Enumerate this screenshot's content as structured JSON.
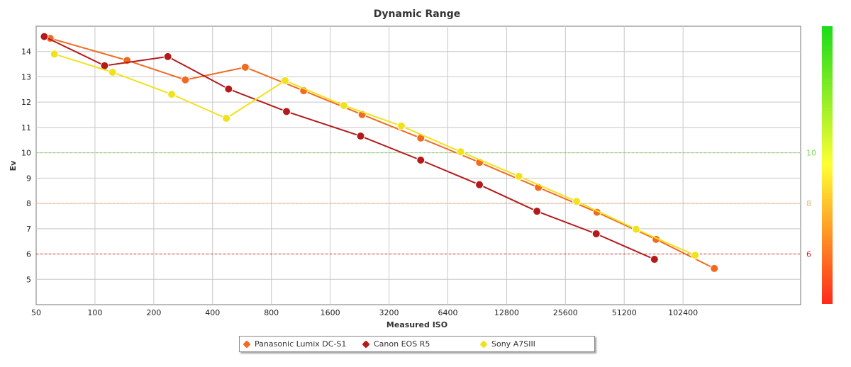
{
  "chart_data": {
    "type": "line",
    "title": "Dynamic Range",
    "xlabel": "Measured ISO",
    "ylabel": "Ev",
    "x_scale": "log2",
    "xlim": [
      50,
      409600
    ],
    "ylim": [
      4,
      15
    ],
    "x_ticks": [
      50,
      100,
      200,
      400,
      800,
      1600,
      3200,
      6400,
      12800,
      25600,
      51200,
      102400
    ],
    "y_ticks": [
      5,
      6,
      7,
      8,
      9,
      10,
      11,
      12,
      13,
      14
    ],
    "grid": true,
    "legend_position": "bottom",
    "reference_lines": [
      {
        "y": 10,
        "label": "10",
        "color": "#7ed957"
      },
      {
        "y": 8,
        "label": "8",
        "color": "#f5b26b"
      },
      {
        "y": 6,
        "label": "6",
        "color": "#d62020"
      }
    ],
    "colorbar": {
      "top_color": "#1adc1a",
      "mid_color": "#ffff33",
      "bottom_color": "#ff2a1a"
    },
    "series": [
      {
        "name": "Panasonic Lumix DC-S1",
        "color": "#f26a21",
        "x": [
          59,
          146,
          290,
          588,
          1170,
          2330,
          4650,
          9300,
          18600,
          37100,
          74500,
          148000
        ],
        "y": [
          14.52,
          13.65,
          12.88,
          13.38,
          12.45,
          11.51,
          10.58,
          9.62,
          8.63,
          7.65,
          6.58,
          5.43
        ]
      },
      {
        "name": "Canon EOS R5",
        "color": "#b41a1a",
        "x": [
          55,
          112,
          236,
          483,
          956,
          2290,
          4650,
          9290,
          18300,
          36800,
          73100
        ],
        "y": [
          14.59,
          13.44,
          13.8,
          12.52,
          11.63,
          10.66,
          9.71,
          8.74,
          7.69,
          6.8,
          5.79
        ]
      },
      {
        "name": "Sony A7SIII",
        "color": "#f0e21c",
        "x": [
          62,
          123,
          247,
          470,
          940,
          1880,
          3700,
          7450,
          14800,
          29200,
          58900,
          118000
        ],
        "y": [
          13.9,
          13.18,
          12.31,
          11.36,
          12.85,
          11.87,
          11.06,
          10.04,
          9.07,
          8.08,
          6.98,
          5.95
        ]
      }
    ]
  }
}
